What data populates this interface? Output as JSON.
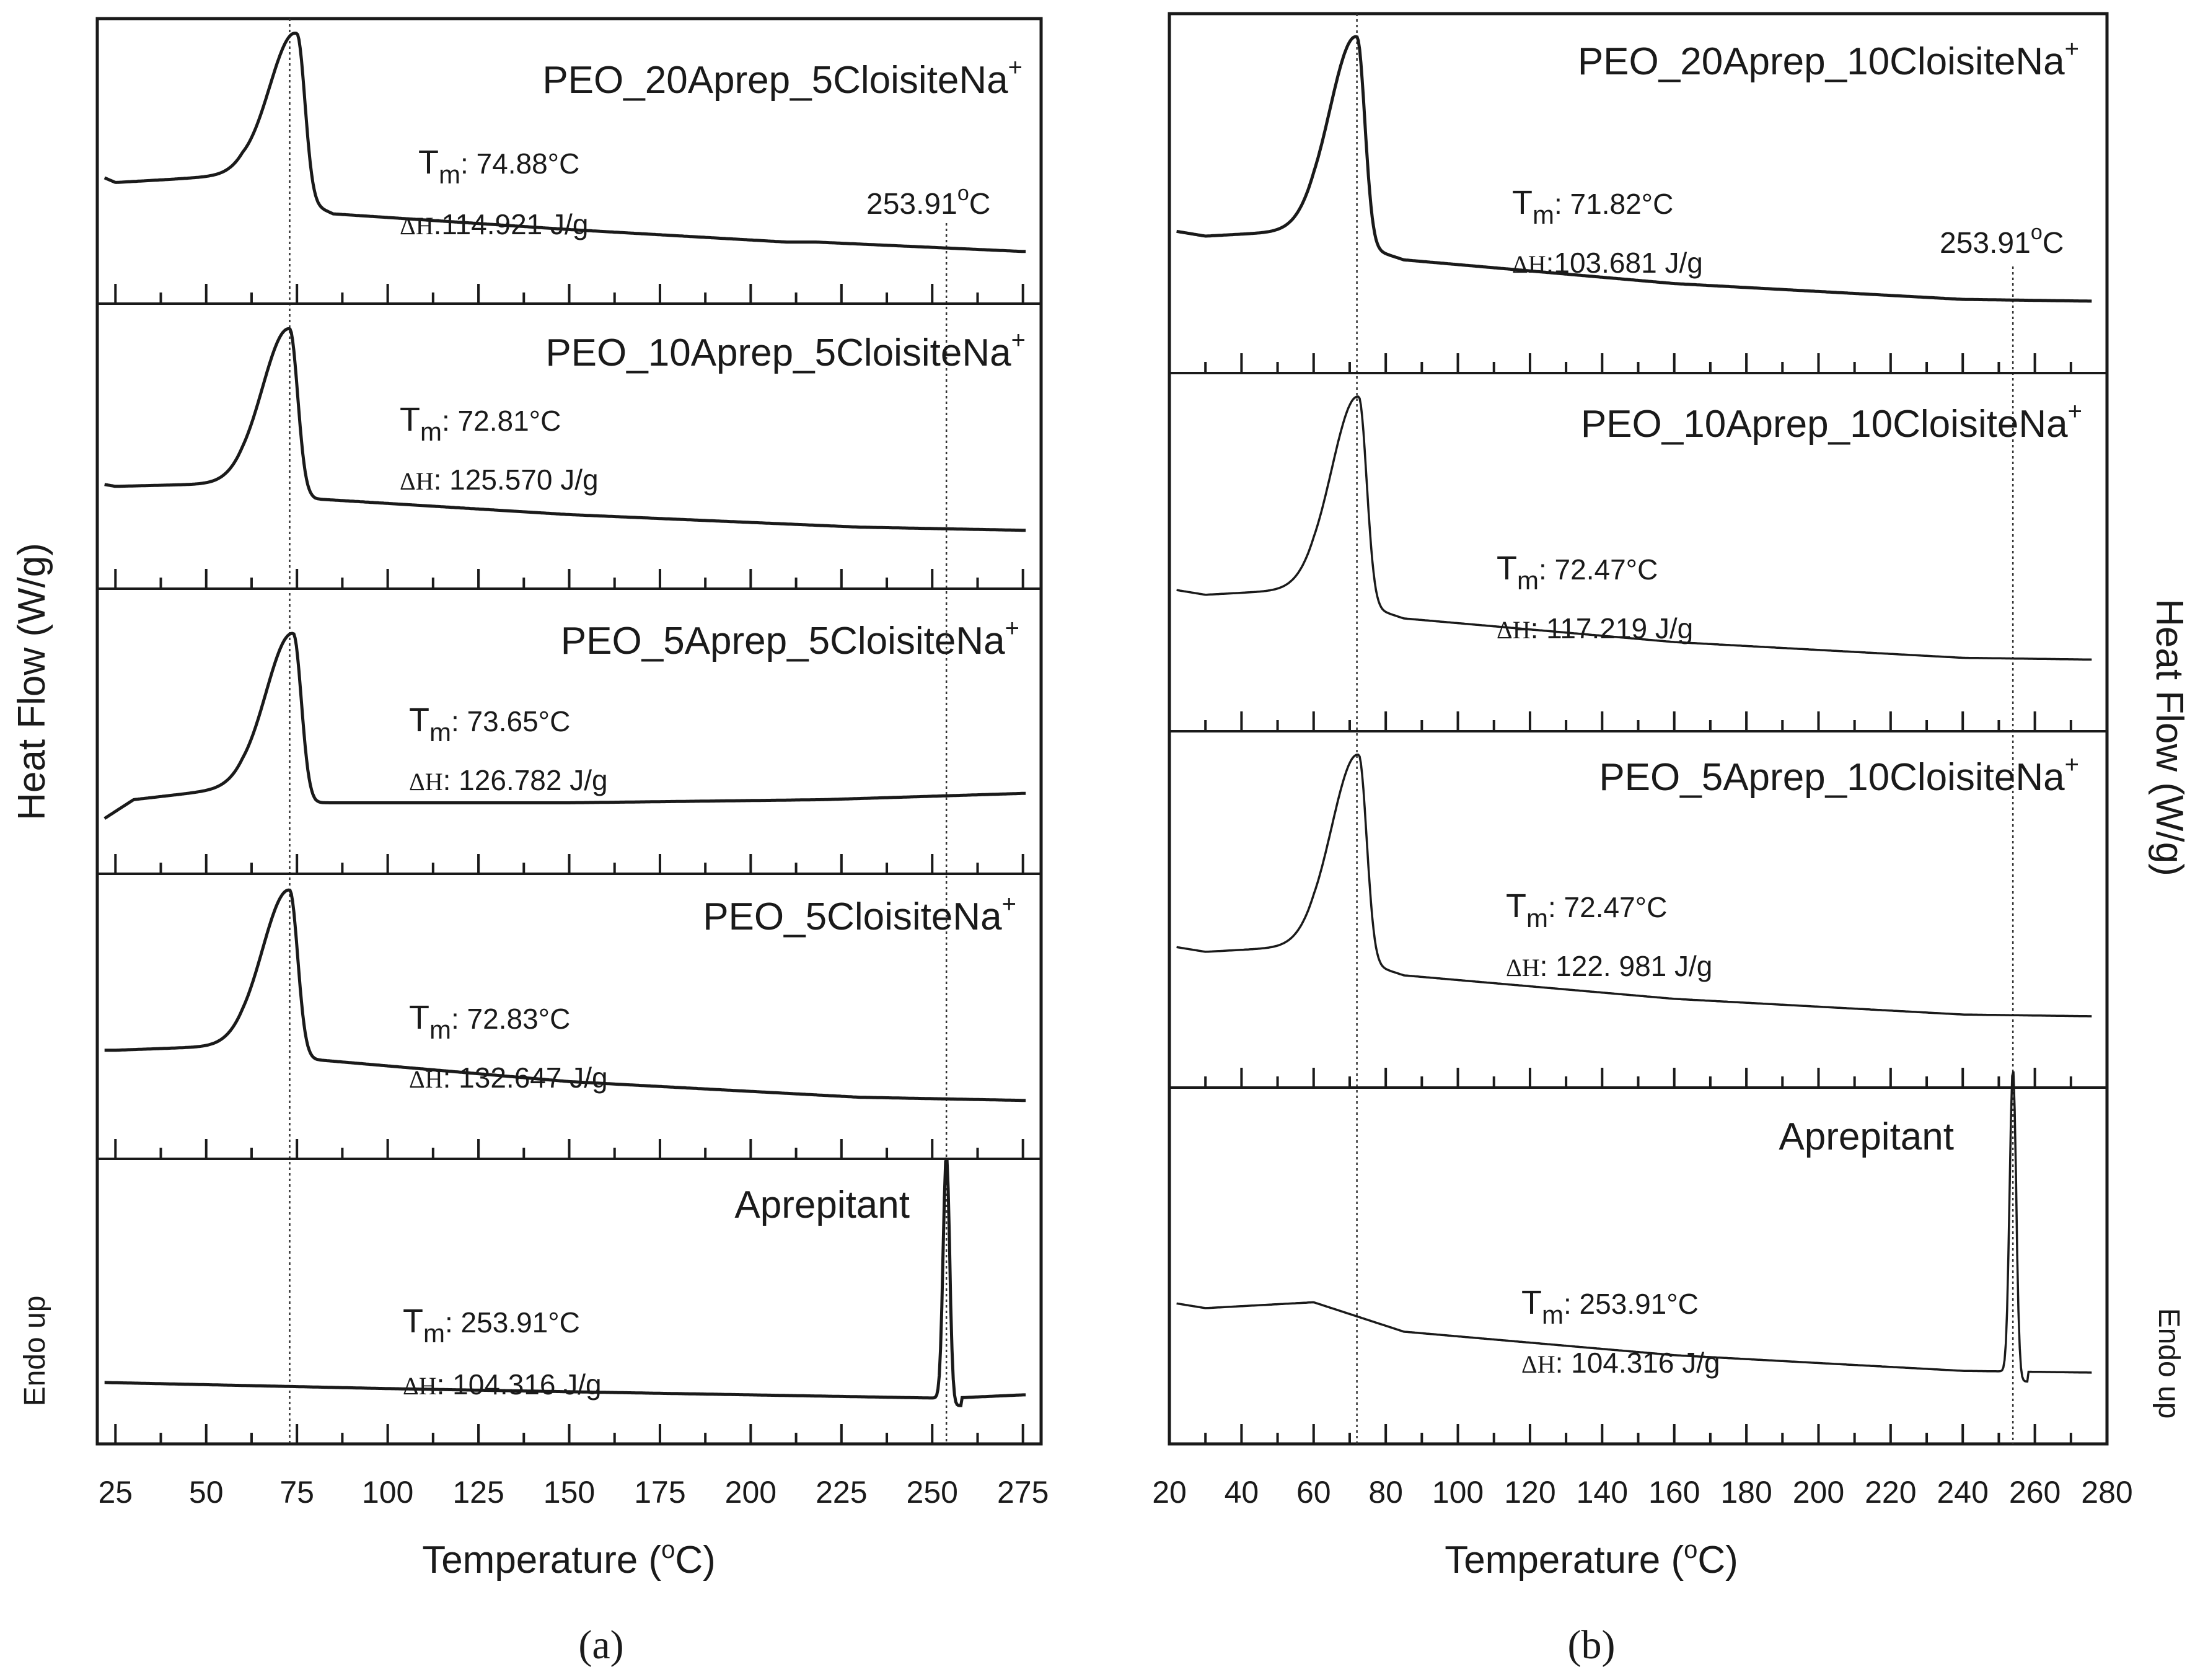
{
  "figure": {
    "panels": [
      {
        "id": "a",
        "caption": "(a)",
        "y_label": "Heat Flow (W/g)",
        "endo_label": "Endo up",
        "x_label_prefix": "Temperature (",
        "x_label_deg": "o",
        "x_label_suffix": "C)",
        "x_ticks": [
          "25",
          "50",
          "75",
          "100",
          "125",
          "150",
          "175",
          "200",
          "225",
          "250",
          "275"
        ],
        "ref_temp_label": "253.91",
        "ref_temp_unit": "C"
      },
      {
        "id": "b",
        "caption": "(b)",
        "y_label": "Heat Flow (W/g)",
        "endo_label": "Endo up",
        "x_label_prefix": "Temperature (",
        "x_label_deg": "o",
        "x_label_suffix": "C)",
        "x_ticks": [
          "20",
          "40",
          "60",
          "80",
          "100",
          "120",
          "140",
          "160",
          "180",
          "200",
          "220",
          "240",
          "260",
          "280"
        ],
        "ref_temp_label": "253.91",
        "ref_temp_unit": "C"
      }
    ]
  },
  "chart_data": [
    {
      "type": "line",
      "panel": "a",
      "xlabel": "Temperature (oC)",
      "ylabel": "Heat Flow (W/g)",
      "xlim": [
        20,
        280
      ],
      "vertical_reference_lines": [
        73,
        253.91
      ],
      "series": [
        {
          "name": "PEO_20Aprep_5CloisiteNa",
          "name_sup": "+",
          "tm_label": "m",
          "tm_value": ": 74.88°C",
          "dh_label": "ΔH",
          "dh_value": ":114.921 J/g",
          "tm_c": 74.88,
          "dh_jg": 114.921,
          "peak": 75,
          "baseline_points": [
            [
              20,
              0.55
            ],
            [
              25,
              0.5
            ],
            [
              40,
              0.52
            ],
            [
              60,
              0.55
            ],
            [
              85,
              0.3
            ],
            [
              150,
              0.2
            ],
            [
              210,
              0.12
            ],
            [
              218,
              0.12
            ],
            [
              275,
              0.06
            ]
          ]
        },
        {
          "name": "PEO_10Aprep_5CloisiteNa",
          "name_sup": "+",
          "tm_label": "m",
          "tm_value": ": 72.81°C",
          "dh_label": "ΔH",
          "dh_value": ": 125.570 J/g",
          "tm_c": 72.81,
          "dh_jg": 125.57,
          "peak": 73,
          "baseline_points": [
            [
              20,
              0.4
            ],
            [
              25,
              0.38
            ],
            [
              60,
              0.4
            ],
            [
              80,
              0.3
            ],
            [
              150,
              0.2
            ],
            [
              230,
              0.12
            ],
            [
              275,
              0.1
            ]
          ]
        },
        {
          "name": "PEO_5Aprep_5CloisiteNa",
          "name_sup": "+",
          "tm_label": "m",
          "tm_value": ": 73.65°C",
          "dh_label": "ΔH",
          "dh_value": ": 126.782 J/g",
          "tm_c": 73.65,
          "dh_jg": 126.782,
          "peak": 74,
          "baseline_points": [
            [
              20,
              0.05
            ],
            [
              30,
              0.2
            ],
            [
              60,
              0.28
            ],
            [
              80,
              0.18
            ],
            [
              150,
              0.18
            ],
            [
              220,
              0.2
            ],
            [
              275,
              0.24
            ]
          ]
        },
        {
          "name": "PEO_5CloisiteNa",
          "name_sup": "+",
          "tm_label": "m",
          "tm_value": ": 72.83°C",
          "dh_label": "ΔH",
          "dh_value": ": 132.647 J/g",
          "tm_c": 72.83,
          "dh_jg": 132.647,
          "peak": 73,
          "baseline_points": [
            [
              20,
              0.42
            ],
            [
              25,
              0.42
            ],
            [
              60,
              0.45
            ],
            [
              80,
              0.36
            ],
            [
              150,
              0.22
            ],
            [
              230,
              0.12
            ],
            [
              275,
              0.1
            ]
          ]
        },
        {
          "name": "Aprepitant",
          "name_sup": "",
          "tm_label": "m",
          "tm_value": ": 253.91°C",
          "dh_label": "ΔH",
          "dh_value": ": 104.316 J/g",
          "tm_c": 253.91,
          "dh_jg": 104.316,
          "peak": 253.91,
          "baseline_points": [
            [
              20,
              0.12
            ],
            [
              100,
              0.08
            ],
            [
              200,
              0.04
            ],
            [
              250,
              0.02
            ],
            [
              256,
              0.02
            ],
            [
              275,
              0.04
            ]
          ]
        }
      ]
    },
    {
      "type": "line",
      "panel": "b",
      "xlabel": "Temperature (oC)",
      "ylabel": "Heat Flow (W/g)",
      "xlim": [
        20,
        280
      ],
      "vertical_reference_lines": [
        72,
        253.91
      ],
      "series": [
        {
          "name": "PEO_20Aprep_10CloisiteNa",
          "name_sup": "+",
          "tm_label": "m",
          "tm_value": ": 71.82°C",
          "dh_label": "ΔH",
          "dh_value": ":103.681 J/g",
          "tm_c": 71.82,
          "dh_jg": 103.681,
          "peak": 72
        },
        {
          "name": "PEO_10Aprep_10CloisiteNa",
          "name_sup": "+",
          "tm_label": "m",
          "tm_value": ": 72.47°C",
          "dh_label": "ΔH",
          "dh_value": ": 117.219 J/g",
          "tm_c": 72.47,
          "dh_jg": 117.219,
          "peak": 72.5
        },
        {
          "name": "PEO_5Aprep_10CloisiteNa",
          "name_sup": "+",
          "tm_label": "m",
          "tm_value": ": 72.47°C",
          "dh_label": "ΔH",
          "dh_value": ": 122. 981 J/g",
          "tm_c": 72.47,
          "dh_jg": 122.981,
          "peak": 72.5
        },
        {
          "name": "Aprepitant",
          "name_sup": "",
          "tm_label": "m",
          "tm_value": ": 253.91°C",
          "dh_label": "ΔH",
          "dh_value": ": 104.316 J/g",
          "tm_c": 253.91,
          "dh_jg": 104.316,
          "peak": 253.91
        }
      ]
    }
  ]
}
